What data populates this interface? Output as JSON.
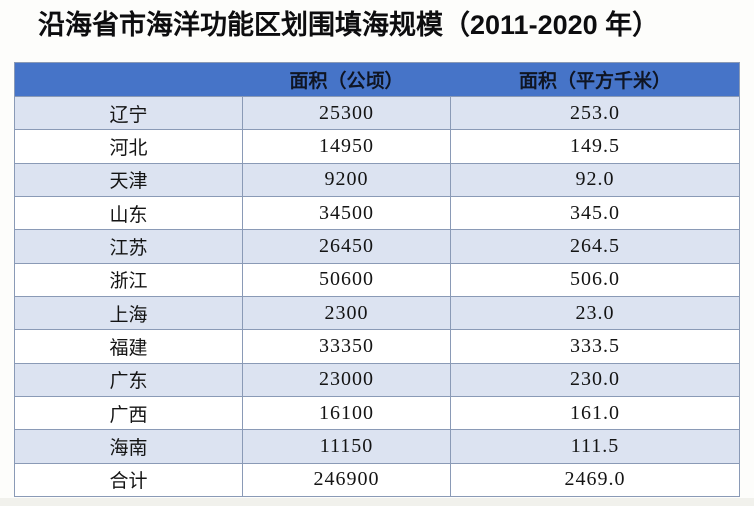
{
  "title": "沿海省市海洋功能区划围填海规模（2011-2020 年）",
  "table": {
    "columns": [
      "",
      "面积（公顷）",
      "面积（平方千米）"
    ],
    "rows": [
      {
        "region": "辽宁",
        "area_ha": "25300",
        "area_km2": "253.0"
      },
      {
        "region": "河北",
        "area_ha": "14950",
        "area_km2": "149.5"
      },
      {
        "region": "天津",
        "area_ha": "9200",
        "area_km2": "92.0"
      },
      {
        "region": "山东",
        "area_ha": "34500",
        "area_km2": "345.0"
      },
      {
        "region": "江苏",
        "area_ha": "26450",
        "area_km2": "264.5"
      },
      {
        "region": "浙江",
        "area_ha": "50600",
        "area_km2": "506.0"
      },
      {
        "region": "上海",
        "area_ha": "2300",
        "area_km2": "23.0"
      },
      {
        "region": "福建",
        "area_ha": "33350",
        "area_km2": "333.5"
      },
      {
        "region": "广东",
        "area_ha": "23000",
        "area_km2": "230.0"
      },
      {
        "region": "广西",
        "area_ha": "16100",
        "area_km2": "161.0"
      },
      {
        "region": "海南",
        "area_ha": "11150",
        "area_km2": "111.5"
      },
      {
        "region": "合计",
        "area_ha": "246900",
        "area_km2": "2469.0"
      }
    ]
  },
  "chart_data": {
    "type": "table",
    "title": "沿海省市海洋功能区划围填海规模（2011-2020 年）",
    "columns": [
      "",
      "面积（公顷）",
      "面积（平方千米）"
    ],
    "categories": [
      "辽宁",
      "河北",
      "天津",
      "山东",
      "江苏",
      "浙江",
      "上海",
      "福建",
      "广东",
      "广西",
      "海南",
      "合计"
    ],
    "series": [
      {
        "name": "面积（公顷）",
        "values": [
          25300,
          14950,
          9200,
          34500,
          26450,
          50600,
          2300,
          33350,
          23000,
          16100,
          11150,
          246900
        ]
      },
      {
        "name": "面积（平方千米）",
        "values": [
          253.0,
          149.5,
          92.0,
          345.0,
          264.5,
          506.0,
          23.0,
          333.5,
          230.0,
          161.0,
          111.5,
          2469.0
        ]
      }
    ],
    "layout": {
      "header_position": "top",
      "banding": "alternate-rows",
      "grid": true
    }
  },
  "colors": {
    "header_background": "#4674C8",
    "header_text": "#0F1523",
    "banded_row_background": "#DCE3F1",
    "plain_row_background": "#FFFFFF",
    "border": "#8A9AB6",
    "title_text": "#0D0D0F"
  }
}
